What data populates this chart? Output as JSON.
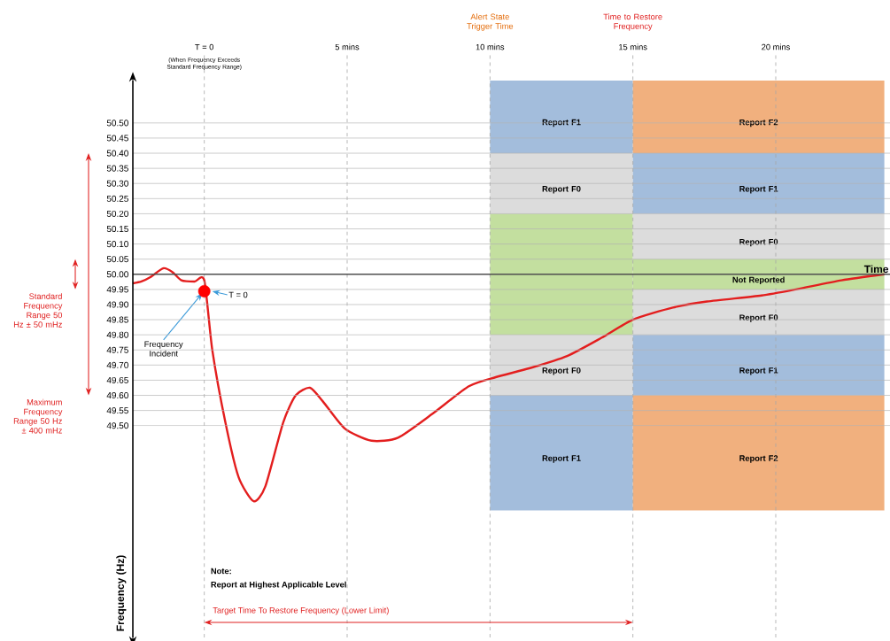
{
  "chart_data": {
    "type": "line",
    "ylabel": "Frequency (Hz)",
    "xlim": [
      -2.5,
      24
    ],
    "ylim": [
      48.8,
      50.64
    ],
    "yticks": [
      {
        "value": 49.5,
        "label": "49.50"
      },
      {
        "value": 49.55,
        "label": "49.55"
      },
      {
        "value": 49.6,
        "label": "49.60"
      },
      {
        "value": 49.65,
        "label": "49.65"
      },
      {
        "value": 49.7,
        "label": "49.70"
      },
      {
        "value": 49.75,
        "label": "49.75"
      },
      {
        "value": 49.8,
        "label": "49.80"
      },
      {
        "value": 49.85,
        "label": "49.85"
      },
      {
        "value": 49.9,
        "label": "49.90"
      },
      {
        "value": 49.95,
        "label": "49.95"
      },
      {
        "value": 50.0,
        "label": "50.00"
      },
      {
        "value": 50.05,
        "label": "50.05"
      },
      {
        "value": 50.1,
        "label": "50.10"
      },
      {
        "value": 50.15,
        "label": "50.15"
      },
      {
        "value": 50.2,
        "label": "50.20"
      },
      {
        "value": 50.25,
        "label": "50.25"
      },
      {
        "value": 50.3,
        "label": "50.30"
      },
      {
        "value": 50.35,
        "label": "50.35"
      },
      {
        "value": 50.4,
        "label": "50.40"
      },
      {
        "value": 50.45,
        "label": "50.45"
      },
      {
        "value": 50.5,
        "label": "50.50"
      }
    ],
    "grid": "y",
    "tick_labels": "y",
    "series": [
      {
        "type": "bar",
        "x": [
          12.5
        ],
        "base": [
          50.4
        ],
        "values": [
          0.24
        ],
        "color": "#a3bddc",
        "value_labels": [
          "Report F1"
        ]
      },
      {
        "type": "bar",
        "x": [
          12.5
        ],
        "base": [
          50.2
        ],
        "values": [
          0.2
        ],
        "color": "#dcdcdc",
        "value_labels": [
          "Report F0"
        ]
      },
      {
        "type": "bar",
        "x": [
          12.5
        ],
        "base": [
          49.8
        ],
        "values": [
          0.4
        ],
        "color": "#c3df9f"
      },
      {
        "type": "bar",
        "x": [
          12.5
        ],
        "base": [
          49.6
        ],
        "values": [
          0.2
        ],
        "color": "#dcdcdc",
        "value_labels": [
          "Report F0"
        ]
      },
      {
        "type": "bar",
        "x": [
          12.5
        ],
        "base": [
          49.22
        ],
        "values": [
          0.38
        ],
        "color": "#a3bddc",
        "value_labels": [
          "Report F1"
        ]
      },
      {
        "type": "bar",
        "x": [
          19.4
        ],
        "base": [
          50.4
        ],
        "values": [
          0.24
        ],
        "color": "#f1b07e",
        "value_labels": [
          "Report F2"
        ]
      },
      {
        "type": "bar",
        "x": [
          19.4
        ],
        "base": [
          50.2
        ],
        "values": [
          0.2
        ],
        "color": "#a3bddc",
        "value_labels": [
          "Report F1"
        ]
      },
      {
        "type": "bar",
        "x": [
          19.4
        ],
        "base": [
          50.05
        ],
        "values": [
          0.15
        ],
        "color": "#dcdcdc",
        "value_labels": [
          "Report F0"
        ]
      },
      {
        "type": "bar",
        "x": [
          19.4
        ],
        "base": [
          49.95
        ],
        "values": [
          0.1
        ],
        "color": "#c3df9f",
        "value_labels": [
          "Not Reported"
        ]
      },
      {
        "type": "bar",
        "x": [
          19.4
        ],
        "base": [
          49.8
        ],
        "values": [
          0.15
        ],
        "color": "#dcdcdc",
        "value_labels": [
          "Report F0"
        ]
      },
      {
        "type": "bar",
        "x": [
          19.4
        ],
        "base": [
          49.6
        ],
        "values": [
          0.2
        ],
        "color": "#a3bddc",
        "value_labels": [
          "Report F1"
        ]
      },
      {
        "type": "bar",
        "x": [
          19.4
        ],
        "base": [
          49.22
        ],
        "values": [
          0.38
        ],
        "color": "#f1b07e",
        "value_labels": [
          "Report F2"
        ]
      },
      {
        "color": "#e31e1e",
        "x": [
          -2.5,
          -2.2,
          -1.9,
          -1.42,
          -1.1,
          -0.8,
          -0.34,
          0,
          0.28,
          0.74,
          1.2,
          1.73,
          2.14,
          2.76,
          3.2,
          3.7,
          4.15,
          4.92,
          5.85,
          6.78,
          8.0,
          9.26,
          10.2,
          11.4,
          12.7,
          13.9,
          15.0,
          16.4,
          17.6,
          19.5,
          20.7,
          22.3,
          23.8
        ],
        "values": [
          49.97,
          49.976,
          49.99,
          50.02,
          50.006,
          49.98,
          49.976,
          49.98,
          49.75,
          49.51,
          49.33,
          49.25,
          49.3,
          49.51,
          49.6,
          49.625,
          49.58,
          49.49,
          49.45,
          49.46,
          49.54,
          49.63,
          49.66,
          49.69,
          49.73,
          49.79,
          49.85,
          49.89,
          49.91,
          49.93,
          49.95,
          49.98,
          50.0
        ]
      },
      {
        "type": "scatter",
        "color": "#ff0000",
        "x": [
          0
        ],
        "values": [
          49.944
        ]
      }
    ],
    "ref_lines": [
      {
        "axis": "x",
        "value": 0,
        "label": "T = 0",
        "color": "#a6a6a6",
        "line_style": "dashed"
      },
      {
        "axis": "x",
        "value": 5,
        "label": "5 mins",
        "color": "#a6a6a6",
        "line_style": "dashed"
      },
      {
        "axis": "x",
        "value": 10,
        "label": "10 mins",
        "color": "#a6a6a6",
        "line_style": "dashed"
      },
      {
        "axis": "x",
        "value": 15,
        "label": "15 mins",
        "color": "#a6a6a6",
        "line_style": "dashed"
      },
      {
        "axis": "x",
        "value": 20,
        "label": "20 mins",
        "color": "#a6a6a6",
        "line_style": "dashed"
      },
      {
        "axis": "y",
        "value": 50.0,
        "label": "Time",
        "color": "#000000",
        "line_style": "solid"
      }
    ],
    "annotations": [
      "(When Frequency Exceeds Standard Frequency Range)",
      "Alert State Trigger Time",
      "Time to Restore Frequency",
      {
        "text": "Frequency Incident",
        "x": 0,
        "y": 49.944
      },
      "T = 0",
      "Note:",
      "Report at Highest Applicable Level",
      "Standard Frequency Range 50 Hz ± 50 mHz",
      "Maximum Frequency Range 50 Hz ± 400 mHz",
      "Target Time To Restore Frequency (Lower Limit)"
    ]
  }
}
